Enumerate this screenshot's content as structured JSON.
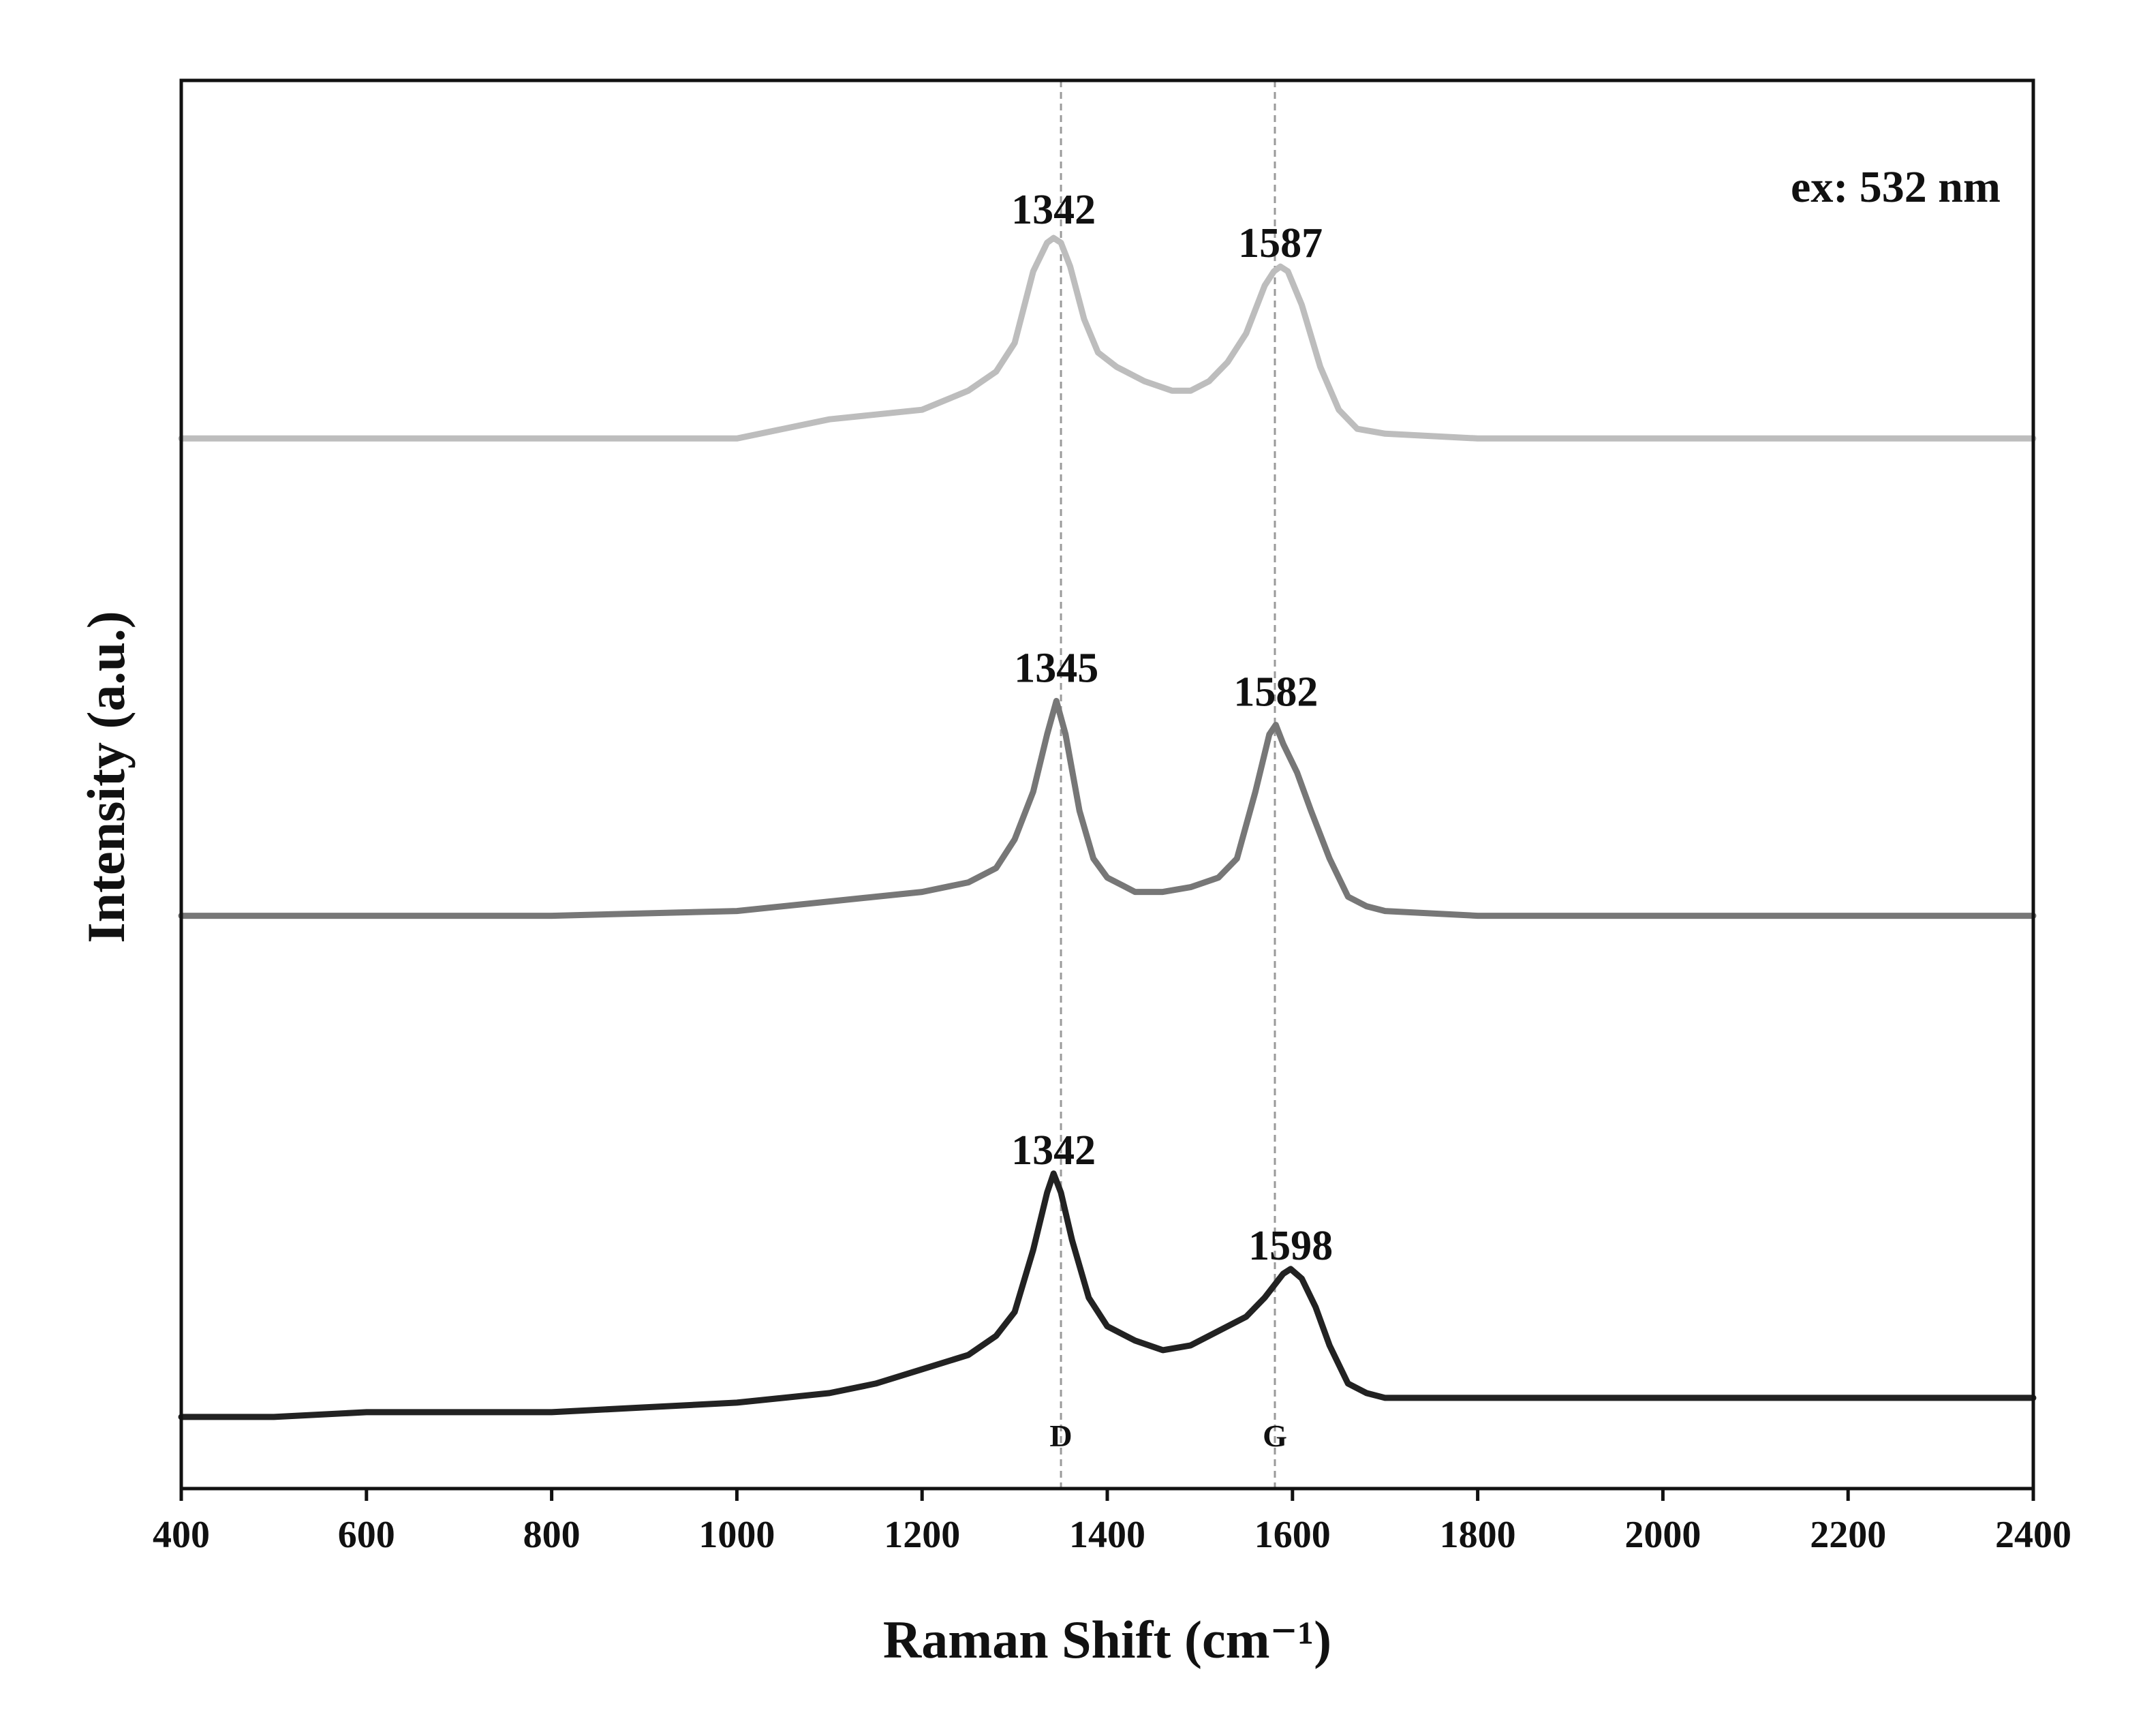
{
  "chart_data": {
    "type": "line",
    "title": "",
    "xlabel": "Raman Shift (cm⁻¹)",
    "ylabel": "Intensity (a.u.)",
    "xlim": [
      400,
      2400
    ],
    "xticks": [
      "400",
      "600",
      "800",
      "1000",
      "1200",
      "1400",
      "1600",
      "1800",
      "2000",
      "2200",
      "2400"
    ],
    "yticks_visible": false,
    "grid": false,
    "legend": "none",
    "annotation": "ex: 532 nm",
    "reference_lines": [
      {
        "label": "D",
        "x": 1350
      },
      {
        "label": "G",
        "x": 1581
      }
    ],
    "series": [
      {
        "color": "#bdbdbd",
        "peak_labels": [
          {
            "text": "1342",
            "x": 1342,
            "y": 2.45
          },
          {
            "text": "1587",
            "x": 1587,
            "y": 2.38
          }
        ],
        "points": [
          [
            400,
            2.0
          ],
          [
            600,
            2.0
          ],
          [
            800,
            2.0
          ],
          [
            1000,
            2.0
          ],
          [
            1100,
            2.04
          ],
          [
            1150,
            2.05
          ],
          [
            1200,
            2.06
          ],
          [
            1250,
            2.1
          ],
          [
            1280,
            2.14
          ],
          [
            1300,
            2.2
          ],
          [
            1320,
            2.35
          ],
          [
            1335,
            2.41
          ],
          [
            1342,
            2.42
          ],
          [
            1350,
            2.41
          ],
          [
            1360,
            2.36
          ],
          [
            1375,
            2.25
          ],
          [
            1390,
            2.18
          ],
          [
            1410,
            2.15
          ],
          [
            1440,
            2.12
          ],
          [
            1470,
            2.1
          ],
          [
            1490,
            2.1
          ],
          [
            1510,
            2.12
          ],
          [
            1530,
            2.16
          ],
          [
            1550,
            2.22
          ],
          [
            1570,
            2.32
          ],
          [
            1580,
            2.35
          ],
          [
            1587,
            2.36
          ],
          [
            1595,
            2.35
          ],
          [
            1610,
            2.28
          ],
          [
            1630,
            2.15
          ],
          [
            1650,
            2.06
          ],
          [
            1670,
            2.02
          ],
          [
            1700,
            2.01
          ],
          [
            1800,
            2.0
          ],
          [
            2000,
            2.0
          ],
          [
            2200,
            2.0
          ],
          [
            2400,
            2.0
          ]
        ]
      },
      {
        "color": "#777777",
        "peak_labels": [
          {
            "text": "1345",
            "x": 1345,
            "y": 1.49
          },
          {
            "text": "1582",
            "x": 1582,
            "y": 1.44
          }
        ],
        "points": [
          [
            400,
            1.0
          ],
          [
            600,
            1.0
          ],
          [
            800,
            1.0
          ],
          [
            1000,
            1.01
          ],
          [
            1100,
            1.03
          ],
          [
            1200,
            1.05
          ],
          [
            1250,
            1.07
          ],
          [
            1280,
            1.1
          ],
          [
            1300,
            1.16
          ],
          [
            1320,
            1.26
          ],
          [
            1335,
            1.38
          ],
          [
            1345,
            1.45
          ],
          [
            1355,
            1.38
          ],
          [
            1370,
            1.22
          ],
          [
            1385,
            1.12
          ],
          [
            1400,
            1.08
          ],
          [
            1430,
            1.05
          ],
          [
            1460,
            1.05
          ],
          [
            1490,
            1.06
          ],
          [
            1520,
            1.08
          ],
          [
            1540,
            1.12
          ],
          [
            1560,
            1.26
          ],
          [
            1575,
            1.38
          ],
          [
            1582,
            1.4
          ],
          [
            1590,
            1.36
          ],
          [
            1605,
            1.3
          ],
          [
            1620,
            1.22
          ],
          [
            1640,
            1.12
          ],
          [
            1660,
            1.04
          ],
          [
            1680,
            1.02
          ],
          [
            1700,
            1.01
          ],
          [
            1800,
            1.0
          ],
          [
            2000,
            1.0
          ],
          [
            2200,
            1.0
          ],
          [
            2400,
            1.0
          ]
        ]
      },
      {
        "color": "#222222",
        "peak_labels": [
          {
            "text": "1342",
            "x": 1342,
            "y": 0.48
          },
          {
            "text": "1598",
            "x": 1598,
            "y": 0.28
          }
        ],
        "points": [
          [
            400,
            -0.05
          ],
          [
            500,
            -0.05
          ],
          [
            600,
            -0.04
          ],
          [
            700,
            -0.04
          ],
          [
            800,
            -0.04
          ],
          [
            900,
            -0.03
          ],
          [
            1000,
            -0.02
          ],
          [
            1100,
            0.0
          ],
          [
            1150,
            0.02
          ],
          [
            1200,
            0.05
          ],
          [
            1250,
            0.08
          ],
          [
            1280,
            0.12
          ],
          [
            1300,
            0.17
          ],
          [
            1320,
            0.3
          ],
          [
            1335,
            0.42
          ],
          [
            1342,
            0.46
          ],
          [
            1350,
            0.42
          ],
          [
            1362,
            0.32
          ],
          [
            1380,
            0.2
          ],
          [
            1400,
            0.14
          ],
          [
            1430,
            0.11
          ],
          [
            1460,
            0.09
          ],
          [
            1490,
            0.1
          ],
          [
            1520,
            0.13
          ],
          [
            1550,
            0.16
          ],
          [
            1570,
            0.2
          ],
          [
            1590,
            0.25
          ],
          [
            1598,
            0.26
          ],
          [
            1610,
            0.24
          ],
          [
            1625,
            0.18
          ],
          [
            1640,
            0.1
          ],
          [
            1660,
            0.02
          ],
          [
            1680,
            0.0
          ],
          [
            1700,
            -0.01
          ],
          [
            1800,
            -0.01
          ],
          [
            2000,
            -0.01
          ],
          [
            2200,
            -0.01
          ],
          [
            2400,
            -0.01
          ]
        ]
      }
    ]
  }
}
